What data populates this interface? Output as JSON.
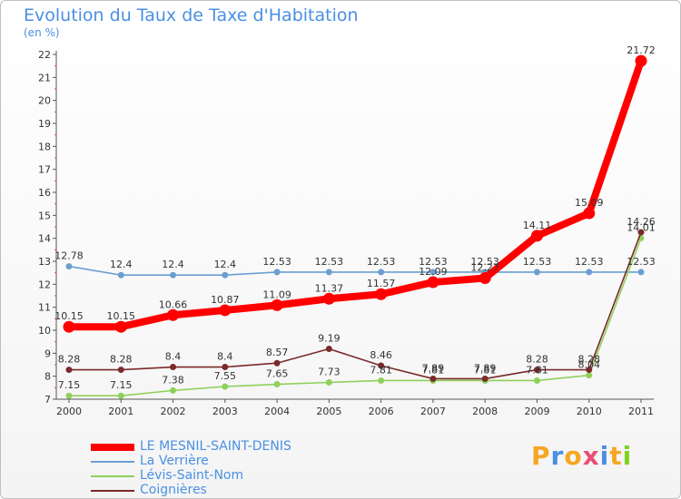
{
  "header": {
    "title": "Evolution du Taux de Taxe d'Habitation",
    "subtitle": "(en %)"
  },
  "logo": {
    "text": "Proxiti"
  },
  "chart_data": {
    "type": "line",
    "categories": [
      "2000",
      "2001",
      "2002",
      "2003",
      "2004",
      "2005",
      "2006",
      "2007",
      "2008",
      "2009",
      "2010",
      "2011"
    ],
    "ylim": [
      7,
      22
    ],
    "yticks": [
      7,
      8,
      9,
      10,
      11,
      12,
      13,
      14,
      15,
      16,
      17,
      18,
      19,
      20,
      21,
      22
    ],
    "legend_position": "bottom-left",
    "series": [
      {
        "name": "LE MESNIL-SAINT-DENIS",
        "color": "#ff0000",
        "values": [
          10.15,
          10.15,
          10.66,
          10.87,
          11.09,
          11.37,
          11.57,
          12.09,
          12.27,
          14.11,
          15.09,
          21.72
        ]
      },
      {
        "name": "La Verrière",
        "color": "#6a9fd0",
        "values": [
          12.78,
          12.4,
          12.4,
          12.4,
          12.53,
          12.53,
          12.53,
          12.53,
          12.53,
          12.53,
          12.53,
          12.53
        ]
      },
      {
        "name": "Lévis-Saint-Nom",
        "color": "#8fd05a",
        "values": [
          7.15,
          7.15,
          7.38,
          7.55,
          7.65,
          7.73,
          7.81,
          7.81,
          7.81,
          7.81,
          8.04,
          14.01
        ]
      },
      {
        "name": "Coignières",
        "color": "#7a2a2a",
        "values": [
          8.28,
          8.28,
          8.4,
          8.4,
          8.57,
          9.19,
          8.46,
          7.89,
          7.89,
          8.28,
          8.28,
          14.26
        ]
      }
    ]
  }
}
